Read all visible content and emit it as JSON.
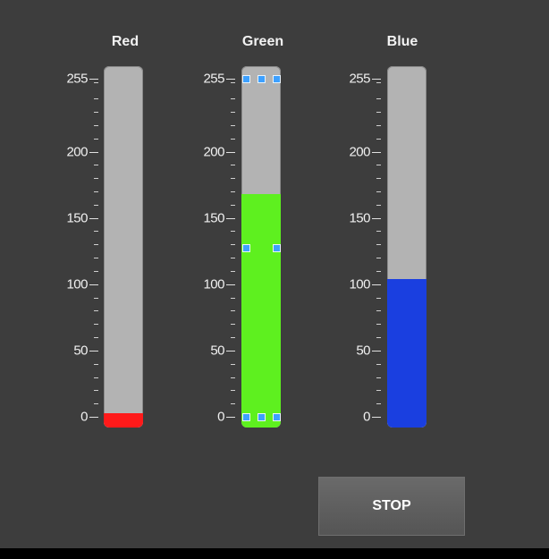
{
  "tanks": [
    {
      "id": "red",
      "label": "Red",
      "value": 3,
      "color": "#ff1a1a",
      "selected": false
    },
    {
      "id": "green",
      "label": "Green",
      "value": 168,
      "color": "#5ef01f",
      "selected": true
    },
    {
      "id": "blue",
      "label": "Blue",
      "value": 104,
      "color": "#1a3fe0",
      "selected": false
    }
  ],
  "scale": {
    "min": 0,
    "max": 255,
    "labels": [
      "0",
      "50",
      "100",
      "150",
      "200",
      "255"
    ],
    "label_values": [
      0,
      50,
      100,
      150,
      200,
      255
    ]
  },
  "stop_button": {
    "label": "STOP"
  },
  "colors": {
    "panel_background": "#3d3d3d",
    "tank_empty": "#b3b3b3",
    "selection_handle": "#3da0ff"
  }
}
